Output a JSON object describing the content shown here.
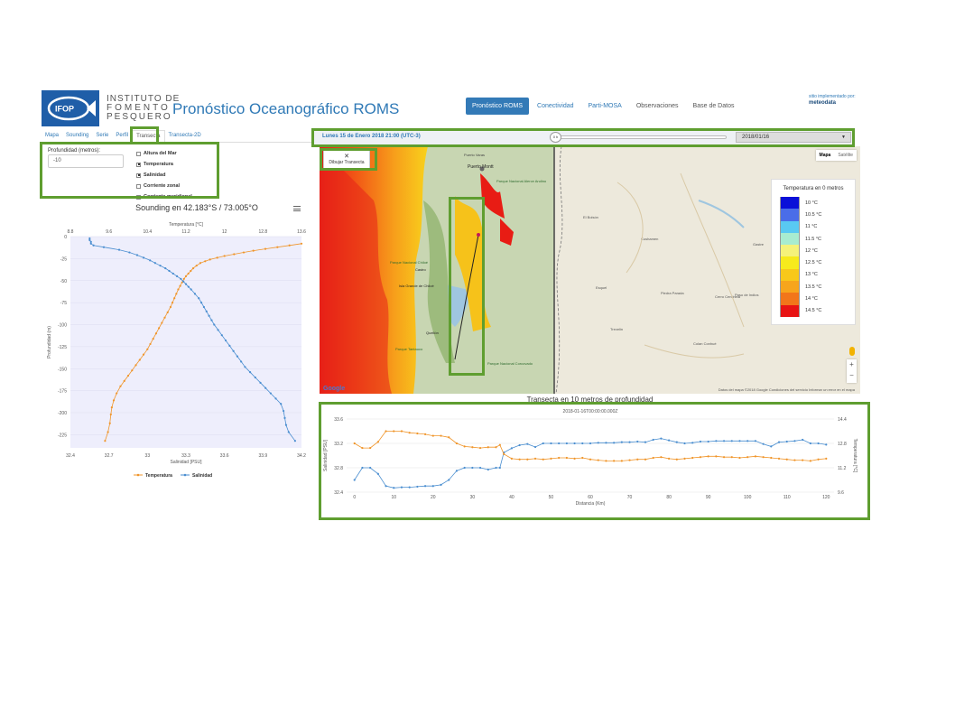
{
  "header": {
    "org_line1": "INSTITUTO DE",
    "org_line2": "FOMENTO",
    "org_line3": "PESQUERO",
    "logo_text": "IFOP",
    "title": "Pronóstico Oceanográfico ROMS",
    "nav": [
      {
        "label": "Pronóstico ROMS",
        "active": true
      },
      {
        "label": "Conectividad",
        "active": false
      },
      {
        "label": "Parti-MOSA",
        "active": false
      },
      {
        "label": "Observaciones",
        "active": false
      },
      {
        "label": "Base de Datos",
        "active": false
      }
    ],
    "brand_small": "sitio implementado por:",
    "brand_name": "meteodata"
  },
  "left": {
    "tabs": [
      "Mapa",
      "Sounding",
      "Serie",
      "Perfil",
      "Transecta",
      "Transecta-2D"
    ],
    "active_tab": "Transecta",
    "depth_label": "Profundidad (metros):",
    "depth_value": "-10",
    "checks": [
      {
        "label": "Altura del Mar",
        "checked": false
      },
      {
        "label": "Temperatura",
        "checked": true
      },
      {
        "label": "Salinidad",
        "checked": true
      },
      {
        "label": "Corriente zonal",
        "checked": false
      },
      {
        "label": "Corriente meridional",
        "checked": false
      }
    ]
  },
  "sounding": {
    "title": "Sounding en 42.183°S / 73.005°O",
    "top_axis_label": "Temperatura [°C]",
    "bottom_axis_label": "Salinidad [PSU]",
    "y_axis_label": "Profundidad (m)",
    "legend_temp": "Temperatura",
    "legend_sal": "Salinidad"
  },
  "map": {
    "time_label": "Lunes 15 de Enero 2018 21:00 (UTC-3)",
    "slider_value": "0 h",
    "date_value": "2018/01/16",
    "draw_button": "Dibujar Transecta",
    "map_type": [
      "Mapa",
      "Satélite"
    ],
    "legend_title": "Temperatura en 0 metros",
    "legend": [
      {
        "label": "10 °C",
        "color": "#0a10d8"
      },
      {
        "label": "10.5 °C",
        "color": "#4a6de8"
      },
      {
        "label": "11 °C",
        "color": "#59c9f2"
      },
      {
        "label": "11.5 °C",
        "color": "#a8ecd0"
      },
      {
        "label": "12 °C",
        "color": "#f5f27a"
      },
      {
        "label": "12.5 °C",
        "color": "#f7ea1c"
      },
      {
        "label": "13 °C",
        "color": "#f8c81a"
      },
      {
        "label": "13.5 °C",
        "color": "#f7a51c"
      },
      {
        "label": "14 °C",
        "color": "#f2761a"
      },
      {
        "label": "14.5 °C",
        "color": "#e81414"
      }
    ],
    "places": [
      "Puerto Varas",
      "Puerto Montt",
      "Parque Nacional Alerce Andino",
      "Parque Nacional Chiloé",
      "Castro",
      "Isla Grande de Chiloé",
      "Quellón",
      "Parque Tantauco",
      "Parque Nacional Corcovado",
      "El Bolsón",
      "Esquel",
      "Trevelin",
      "Cushamen",
      "Gastre",
      "Paso de Indios",
      "Piedra Parada",
      "Cerro Centinela",
      "Colan Conhué"
    ],
    "footer": "Datos del mapa ©2018 Google   Condiciones del servicio   Informar un error en el mapa",
    "google": "Google"
  },
  "transect": {
    "title": "Transecta en 10 metros de profundidad",
    "subtitle": "2018-01-16T00:00:00.000Z",
    "xlabel": "Distancia (Km)",
    "ylabel_left": "Salinidad [PSU]",
    "ylabel_right": "Temperatura [°C]"
  },
  "chart_data": [
    {
      "type": "line",
      "title": "Sounding en 42.183°S / 73.005°O",
      "xlabel": "Salinidad [PSU]",
      "x2label": "Temperatura [°C]",
      "ylabel": "Profundidad (m)",
      "xlim": [
        32.4,
        34.2
      ],
      "xticks": [
        32.4,
        32.7,
        33,
        33.3,
        33.6,
        33.9,
        34.2
      ],
      "x2lim": [
        8.8,
        13.6
      ],
      "x2ticks": [
        8.8,
        9.6,
        10.4,
        11.2,
        12,
        12.8,
        13.6
      ],
      "ylim": [
        -240,
        0
      ],
      "yticks": [
        0,
        -25,
        -50,
        -75,
        -100,
        -125,
        -150,
        -175,
        -200,
        -225
      ],
      "series": [
        {
          "name": "Temperatura",
          "color": "#f0952a",
          "axis": "x2",
          "depth": [
            -8,
            -10,
            -12,
            -14,
            -16,
            -18,
            -20,
            -22,
            -24,
            -26,
            -28,
            -30,
            -33,
            -36,
            -39,
            -42,
            -45,
            -48,
            -52,
            -56,
            -60,
            -65,
            -70,
            -75,
            -80,
            -86,
            -92,
            -98,
            -104,
            -110,
            -116,
            -122,
            -128,
            -134,
            -140,
            -146,
            -152,
            -158,
            -164,
            -170,
            -178,
            -186,
            -194,
            -202,
            -212,
            -222,
            -232
          ],
          "value": [
            13.6,
            13.35,
            13.1,
            12.85,
            12.6,
            12.4,
            12.2,
            12.0,
            11.85,
            11.7,
            11.6,
            11.5,
            11.42,
            11.35,
            11.3,
            11.25,
            11.2,
            11.16,
            11.12,
            11.08,
            11.04,
            11.0,
            10.96,
            10.92,
            10.88,
            10.82,
            10.76,
            10.7,
            10.64,
            10.58,
            10.52,
            10.46,
            10.4,
            10.32,
            10.24,
            10.16,
            10.08,
            10.0,
            9.92,
            9.84,
            9.76,
            9.7,
            9.66,
            9.64,
            9.62,
            9.58,
            9.52
          ]
        },
        {
          "name": "Salinidad",
          "color": "#4a8ed0",
          "axis": "x",
          "depth": [
            -2,
            -4,
            -6,
            -8,
            -10,
            -12,
            -15,
            -18,
            -21,
            -24,
            -27,
            -30,
            -33,
            -36,
            -39,
            -42,
            -45,
            -48,
            -51,
            -54,
            -57,
            -60,
            -65,
            -70,
            -75,
            -80,
            -85,
            -90,
            -95,
            -100,
            -106,
            -112,
            -118,
            -124,
            -130,
            -136,
            -142,
            -148,
            -154,
            -160,
            -166,
            -172,
            -178,
            -184,
            -190,
            -198,
            -206,
            -214,
            -222,
            -232
          ],
          "value": [
            32.55,
            32.55,
            32.56,
            32.56,
            32.58,
            32.66,
            32.78,
            32.86,
            32.92,
            32.97,
            33.02,
            33.06,
            33.1,
            33.14,
            33.17,
            33.2,
            33.23,
            33.26,
            33.28,
            33.3,
            33.32,
            33.34,
            33.37,
            33.4,
            33.42,
            33.44,
            33.46,
            33.48,
            33.5,
            33.52,
            33.55,
            33.58,
            33.61,
            33.64,
            33.67,
            33.7,
            33.73,
            33.76,
            33.8,
            33.84,
            33.88,
            33.92,
            33.96,
            34.0,
            34.04,
            34.06,
            34.07,
            34.08,
            34.1,
            34.15
          ]
        }
      ]
    },
    {
      "type": "line",
      "title": "Transecta en 10 metros de profundidad",
      "subtitle": "2018-01-16T00:00:00.000Z",
      "xlabel": "Distancia (Km)",
      "ylabel": "Salinidad [PSU]",
      "y2label": "Temperatura [°C]",
      "xlim": [
        -2,
        122
      ],
      "xticks": [
        0,
        10,
        20,
        30,
        40,
        50,
        60,
        70,
        80,
        90,
        100,
        110,
        120
      ],
      "ylim": [
        32.4,
        33.6
      ],
      "yticks": [
        32.4,
        32.8,
        33.2,
        33.6
      ],
      "y2lim": [
        9.6,
        14.4
      ],
      "y2ticks": [
        9.6,
        11.2,
        12.8,
        14.4
      ],
      "series": [
        {
          "name": "Salinidad",
          "color": "#4a8ed0",
          "axis": "y",
          "x": [
            0,
            2,
            4,
            6,
            8,
            10,
            12,
            14,
            16,
            18,
            20,
            22,
            24,
            26,
            28,
            30,
            32,
            34,
            36,
            37,
            38,
            40,
            42,
            44,
            46,
            48,
            50,
            52,
            54,
            56,
            58,
            60,
            62,
            64,
            66,
            68,
            70,
            72,
            74,
            76,
            78,
            80,
            82,
            84,
            86,
            88,
            90,
            92,
            94,
            96,
            98,
            100,
            102,
            104,
            106,
            108,
            110,
            112,
            114,
            116,
            118,
            120
          ],
          "value": [
            32.6,
            32.8,
            32.8,
            32.7,
            32.5,
            32.47,
            32.48,
            32.48,
            32.49,
            32.5,
            32.5,
            32.52,
            32.6,
            32.75,
            32.8,
            32.8,
            32.8,
            32.77,
            32.8,
            32.8,
            33.05,
            33.12,
            33.17,
            33.19,
            33.14,
            33.2,
            33.2,
            33.2,
            33.2,
            33.2,
            33.2,
            33.2,
            33.21,
            33.21,
            33.21,
            33.22,
            33.22,
            33.23,
            33.22,
            33.26,
            33.28,
            33.25,
            33.22,
            33.2,
            33.21,
            33.23,
            33.23,
            33.24,
            33.24,
            33.24,
            33.24,
            33.24,
            33.24,
            33.19,
            33.15,
            33.22,
            33.23,
            33.24,
            33.26,
            33.2,
            33.2,
            33.18
          ]
        },
        {
          "name": "Temperatura",
          "color": "#f0952a",
          "axis": "y2",
          "x": [
            0,
            2,
            4,
            6,
            8,
            10,
            12,
            14,
            16,
            18,
            20,
            22,
            24,
            26,
            28,
            30,
            32,
            34,
            36,
            37,
            38,
            40,
            42,
            44,
            46,
            48,
            50,
            52,
            54,
            56,
            58,
            60,
            62,
            64,
            66,
            68,
            70,
            72,
            74,
            76,
            78,
            80,
            82,
            84,
            86,
            88,
            90,
            92,
            94,
            96,
            98,
            100,
            102,
            104,
            106,
            108,
            110,
            112,
            114,
            116,
            118,
            120
          ],
          "value": [
            12.8,
            12.5,
            12.5,
            12.9,
            13.6,
            13.6,
            13.6,
            13.5,
            13.45,
            13.4,
            13.3,
            13.3,
            13.2,
            12.8,
            12.6,
            12.55,
            12.5,
            12.55,
            12.55,
            12.7,
            12.1,
            11.8,
            11.75,
            11.75,
            11.8,
            11.75,
            11.8,
            11.85,
            11.85,
            11.8,
            11.85,
            11.75,
            11.7,
            11.65,
            11.65,
            11.65,
            11.7,
            11.75,
            11.75,
            11.85,
            11.9,
            11.8,
            11.75,
            11.8,
            11.85,
            11.9,
            11.95,
            11.95,
            11.9,
            11.9,
            11.85,
            11.9,
            11.95,
            11.9,
            11.85,
            11.8,
            11.75,
            11.7,
            11.7,
            11.65,
            11.75,
            11.8
          ]
        }
      ]
    }
  ]
}
